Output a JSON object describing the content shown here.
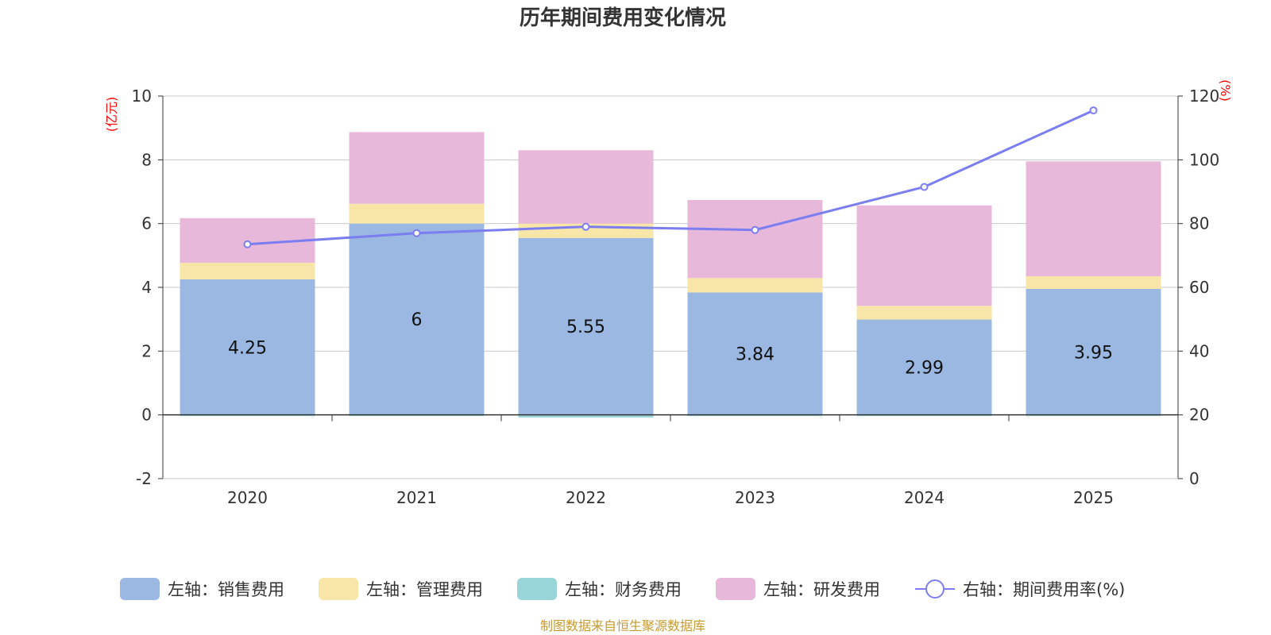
{
  "chart_data": {
    "type": "bar",
    "stacked": true,
    "title": "历年期间费用变化情况",
    "categories": [
      "2020",
      "2021",
      "2022",
      "2023",
      "2024",
      "2025"
    ],
    "left_axis": {
      "unit": "(亿元)",
      "min": -2,
      "max": 10,
      "ticks": [
        "-2",
        "0",
        "2",
        "4",
        "6",
        "8",
        "10"
      ]
    },
    "right_axis": {
      "unit": "(%)",
      "min": 0,
      "max": 120,
      "ticks": [
        "0",
        "20",
        "40",
        "60",
        "80",
        "100",
        "120"
      ]
    },
    "series": [
      {
        "name": "左轴：销售费用",
        "axis": "left",
        "type": "bar",
        "color": "#9bb8e2",
        "values": [
          4.25,
          6,
          5.55,
          3.84,
          2.99,
          3.95
        ],
        "labels": [
          "4.25",
          "6",
          "5.55",
          "3.84",
          "2.99",
          "3.95"
        ]
      },
      {
        "name": "左轴：管理费用",
        "axis": "left",
        "type": "bar",
        "color": "#f7e6a8",
        "values": [
          0.52,
          0.62,
          0.45,
          0.45,
          0.43,
          0.4
        ]
      },
      {
        "name": "左轴：财务费用",
        "axis": "left",
        "type": "bar",
        "color": "#97d5d8",
        "values": [
          -0.01,
          -0.02,
          -0.08,
          -0.03,
          -0.02,
          -0.01
        ]
      },
      {
        "name": "左轴：研发费用",
        "axis": "left",
        "type": "bar",
        "color": "#e8b8da",
        "values": [
          1.4,
          2.25,
          2.3,
          2.45,
          3.15,
          3.6
        ]
      },
      {
        "name": "右轴：期间费用率(%)",
        "axis": "right",
        "type": "line",
        "color": "#7b7ef0",
        "values": [
          73.5,
          77,
          79,
          78,
          91.5,
          115.5
        ]
      }
    ]
  },
  "source_text": "制图数据来自恒生聚源数据库"
}
